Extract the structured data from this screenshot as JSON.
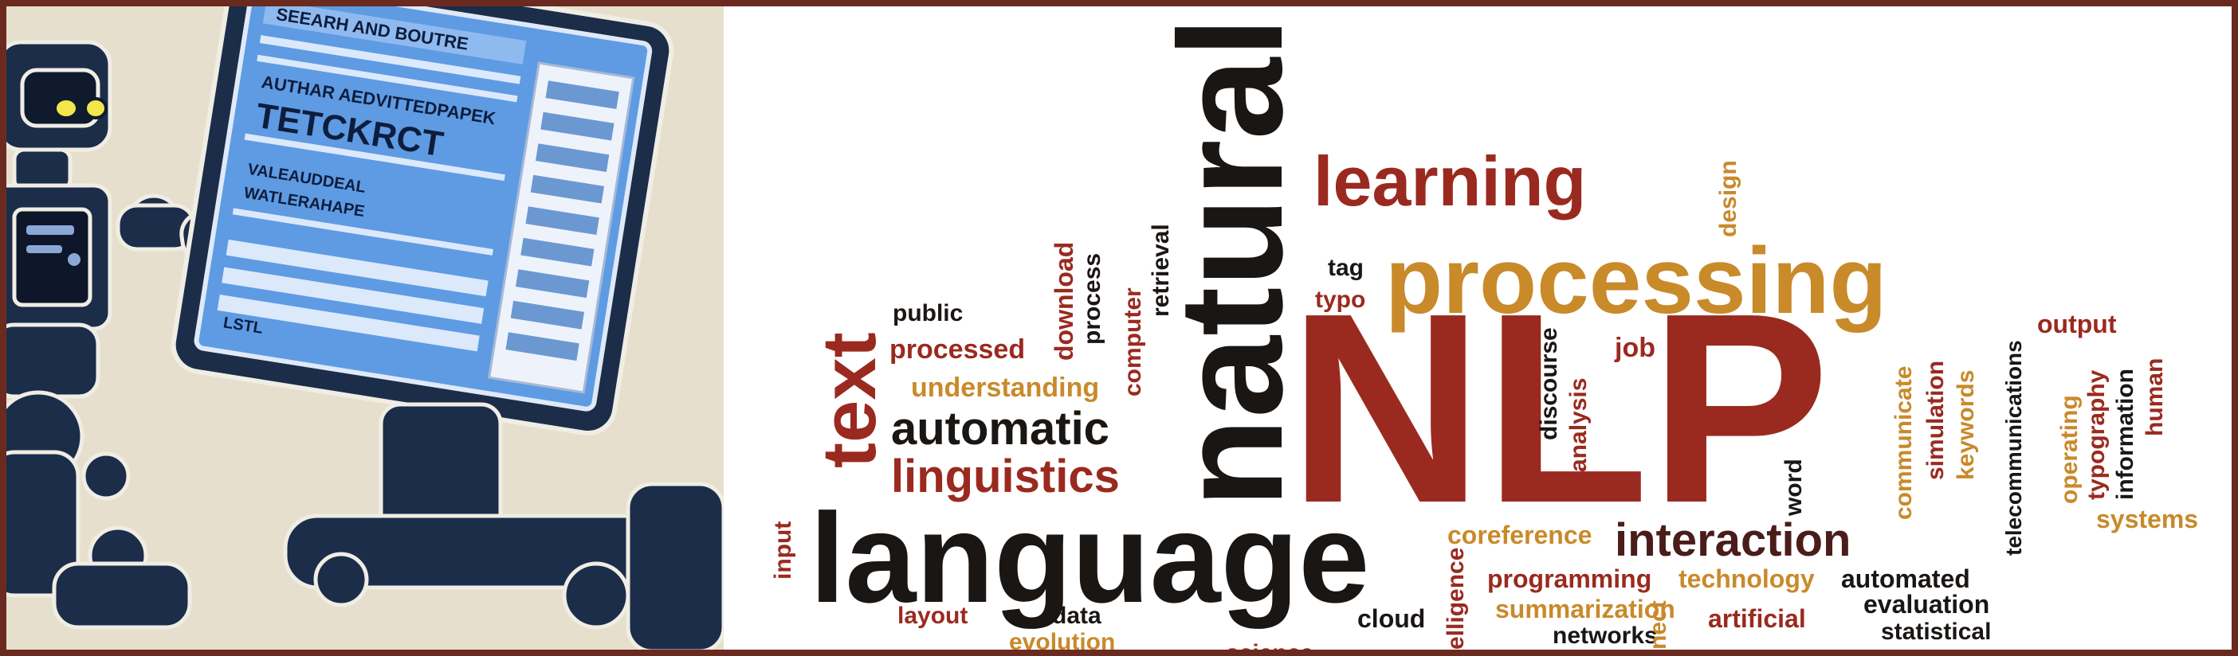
{
  "image": {
    "description": "Banner: cartoon robot reading a tablet next to an NLP word cloud"
  },
  "tablet_screen": {
    "heading": "TETCKRCT",
    "line1": "SEEARH AND BOUTRE",
    "line2": "AUTHAR AEDVITTEDPAPEK",
    "line3": "VALEAUDDEAL",
    "line4": "WATLERAHAPE",
    "footer": "LSTL"
  },
  "colors": {
    "maroon": "#9a2a1f",
    "gold": "#c98a2a",
    "black": "#1a1614",
    "frame": "#6b2a20",
    "robot": "#1c2d4a",
    "screen": "#5e9be3"
  },
  "word_cloud": {
    "words": {
      "nlp": "NLP",
      "natural": "natural",
      "language": "language",
      "processing": "processing",
      "learning": "learning",
      "text": "text",
      "automatic": "automatic",
      "linguistics": "linguistics",
      "interaction": "interaction",
      "processed": "processed",
      "understanding": "understanding",
      "public": "public",
      "download": "download",
      "process": "process",
      "computer": "computer",
      "retrieval": "retrieval",
      "tag": "tag",
      "typo": "typo",
      "design": "design",
      "discourse": "discourse",
      "analysis": "analysis",
      "job": "job",
      "word": "word",
      "communicate": "communicate",
      "simulation": "simulation",
      "keywords": "keywords",
      "telecommunications": "telecommunications",
      "output": "output",
      "operating": "operating",
      "typography": "typography",
      "information": "information",
      "human": "human",
      "systems": "systems",
      "coreference": "coreference",
      "programming": "programming",
      "technology": "technology",
      "automated": "automated",
      "evaluation": "evaluation",
      "summarization": "summarization",
      "artificial": "artificial",
      "statistical": "statistical",
      "networks": "networks",
      "input": "input",
      "layout": "layout",
      "data": "data",
      "evolution": "evolution",
      "cloud": "cloud",
      "intelligence_fragment": "elligence",
      "connect_fragment": "nect",
      "science": "science"
    }
  }
}
